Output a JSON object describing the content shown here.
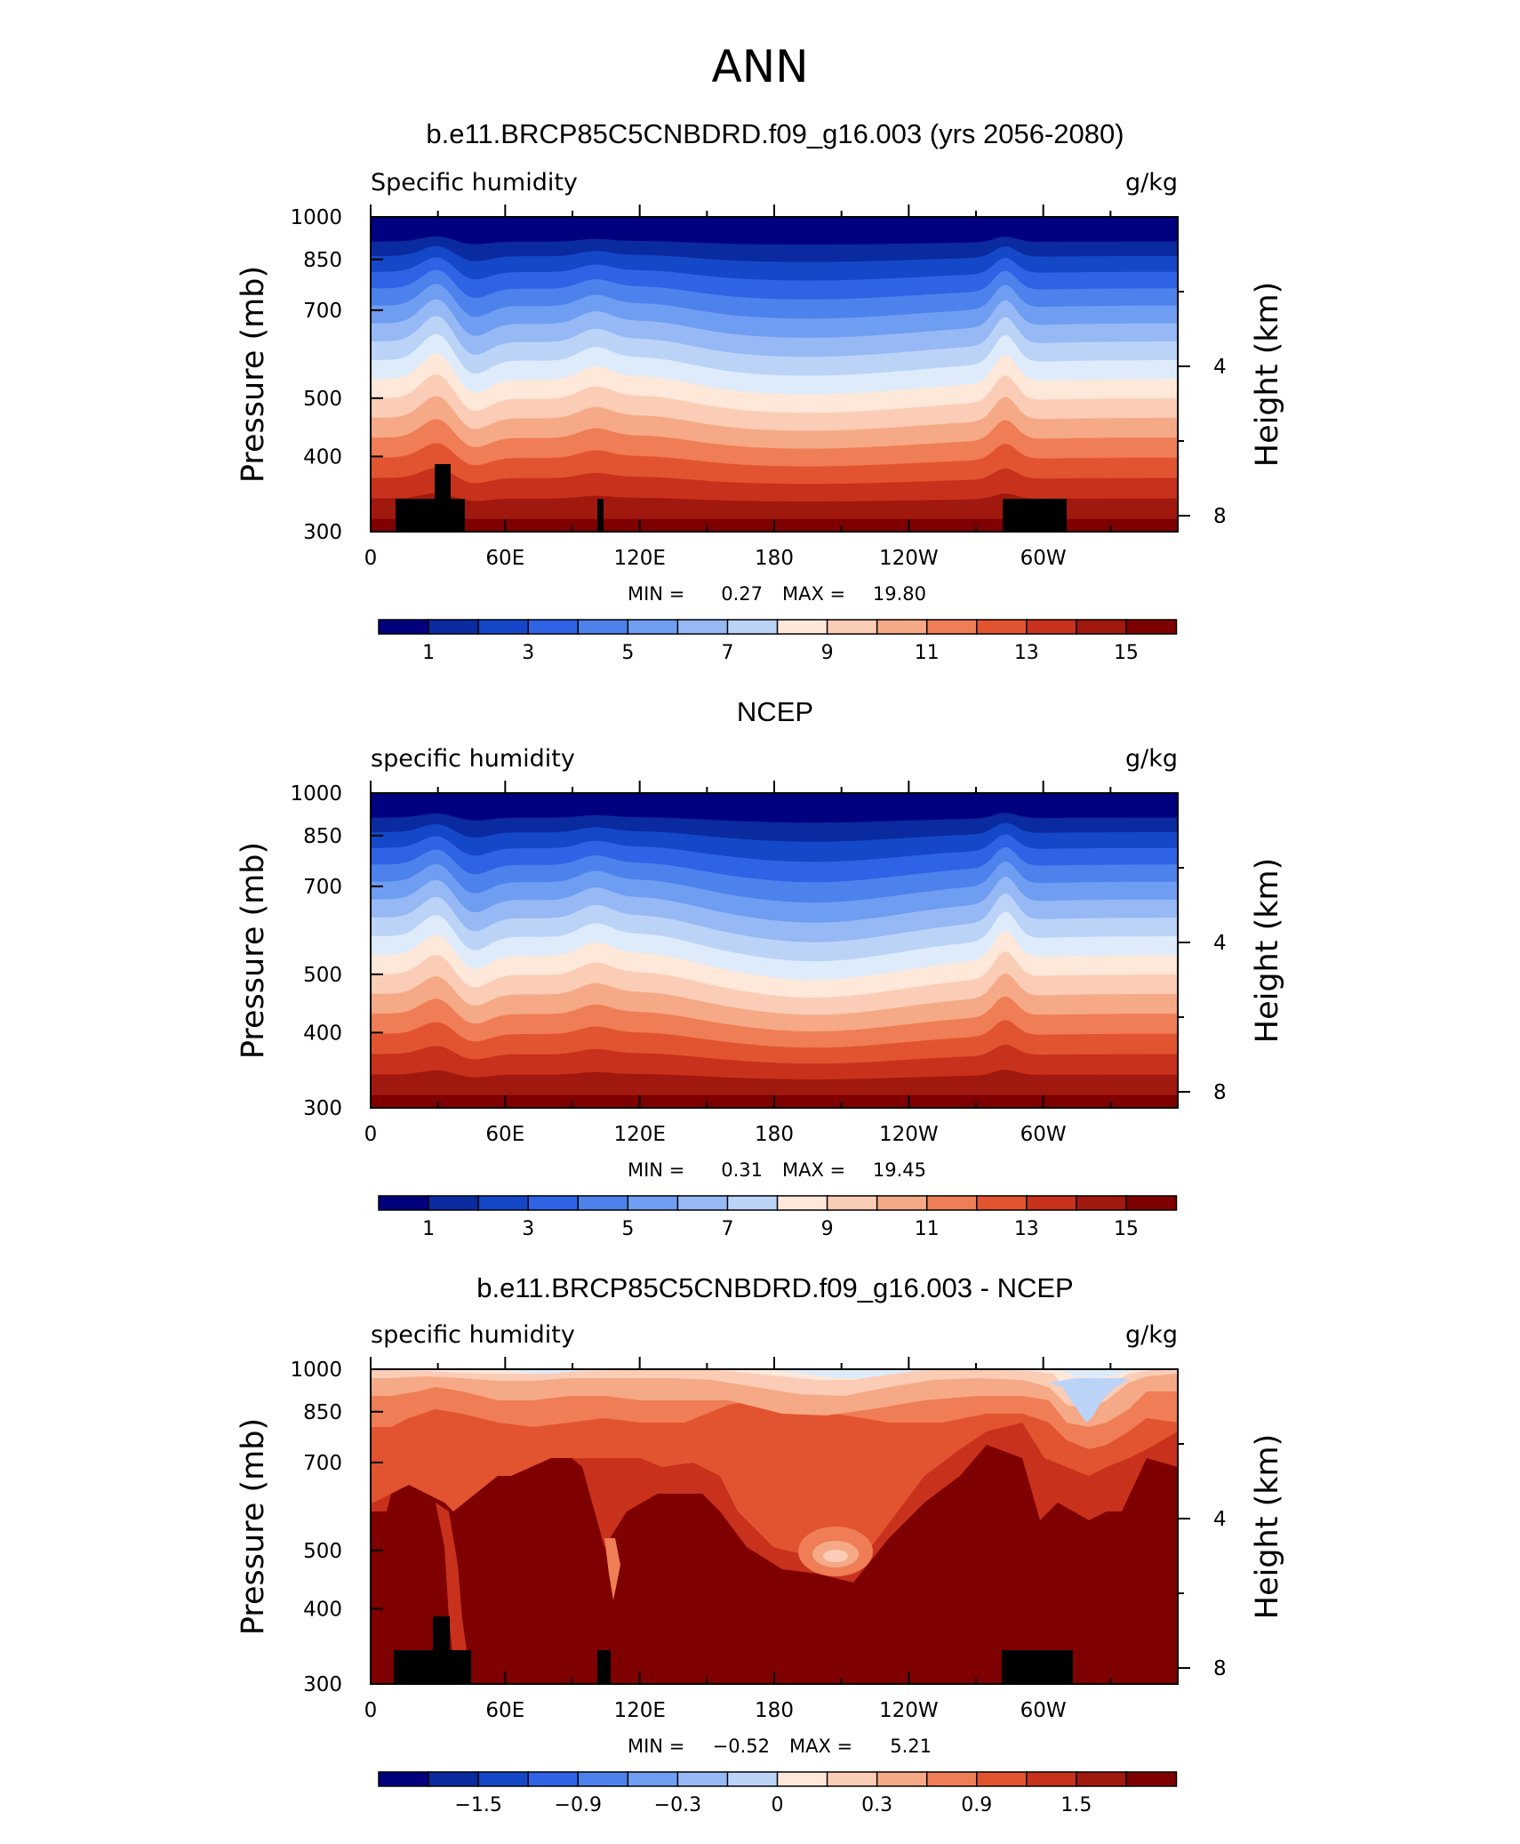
{
  "figure": {
    "title": "ANN"
  },
  "chart_data": [
    {
      "type": "heatmap",
      "panel": "model",
      "title": "b.e11.BRCP85C5CNBDRD.f09_g16.003 (yrs 2056-2080)",
      "left_label": "Specific humidity",
      "right_label": "g/kg",
      "xlabel": "",
      "ylabel": "Pressure (mb)",
      "ylabel_right": "Height (km)",
      "x_ticks": [
        "0",
        "60E",
        "120E",
        "180",
        "120W",
        "60W"
      ],
      "y_ticks": [
        "300",
        "400",
        "500",
        "700",
        "850",
        "1000"
      ],
      "y2_ticks": [
        "8",
        "4"
      ],
      "min_label": "MIN =",
      "min_value": "0.27",
      "max_label": "MAX =",
      "max_value": "19.80",
      "colorbar_labels": [
        "1",
        "3",
        "5",
        "7",
        "9",
        "11",
        "13",
        "15"
      ],
      "ylim": [
        1000,
        300
      ],
      "xlim": [
        0,
        360
      ]
    },
    {
      "type": "heatmap",
      "panel": "obs",
      "title": "NCEP",
      "left_label": "specific humidity",
      "right_label": "g/kg",
      "xlabel": "",
      "ylabel": "Pressure (mb)",
      "ylabel_right": "Height (km)",
      "x_ticks": [
        "0",
        "60E",
        "120E",
        "180",
        "120W",
        "60W"
      ],
      "y_ticks": [
        "300",
        "400",
        "500",
        "700",
        "850",
        "1000"
      ],
      "y2_ticks": [
        "8",
        "4"
      ],
      "min_label": "MIN =",
      "min_value": "0.31",
      "max_label": "MAX =",
      "max_value": "19.45",
      "colorbar_labels": [
        "1",
        "3",
        "5",
        "7",
        "9",
        "11",
        "13",
        "15"
      ],
      "ylim": [
        1000,
        300
      ],
      "xlim": [
        0,
        360
      ]
    },
    {
      "type": "heatmap",
      "panel": "diff",
      "title": "b.e11.BRCP85C5CNBDRD.f09_g16.003 - NCEP",
      "left_label": "specific humidity",
      "right_label": "g/kg",
      "xlabel": "",
      "ylabel": "Pressure (mb)",
      "ylabel_right": "Height (km)",
      "x_ticks": [
        "0",
        "60E",
        "120E",
        "180",
        "120W",
        "60W"
      ],
      "y_ticks": [
        "300",
        "400",
        "500",
        "700",
        "850",
        "1000"
      ],
      "y2_ticks": [
        "8",
        "4"
      ],
      "min_label": "MIN =",
      "min_value": "−0.52",
      "max_label": "MAX =",
      "max_value": "5.21",
      "colorbar_labels": [
        "−1.5",
        "−0.9",
        "−0.3",
        "0",
        "0.3",
        "0.9",
        "1.5"
      ],
      "ylim": [
        1000,
        300
      ],
      "xlim": [
        0,
        360
      ]
    }
  ],
  "colormap": [
    "#00007f",
    "#0a2a9f",
    "#1448c8",
    "#2e63e6",
    "#4d82ec",
    "#6f9df1",
    "#96b9f5",
    "#bcd3f8",
    "#ddebfb",
    "#fde8da",
    "#fbcdb6",
    "#f6a986",
    "#ef7d55",
    "#e2542f",
    "#c8311b",
    "#a1180f",
    "#7f0000"
  ],
  "mask_color": "#000000"
}
